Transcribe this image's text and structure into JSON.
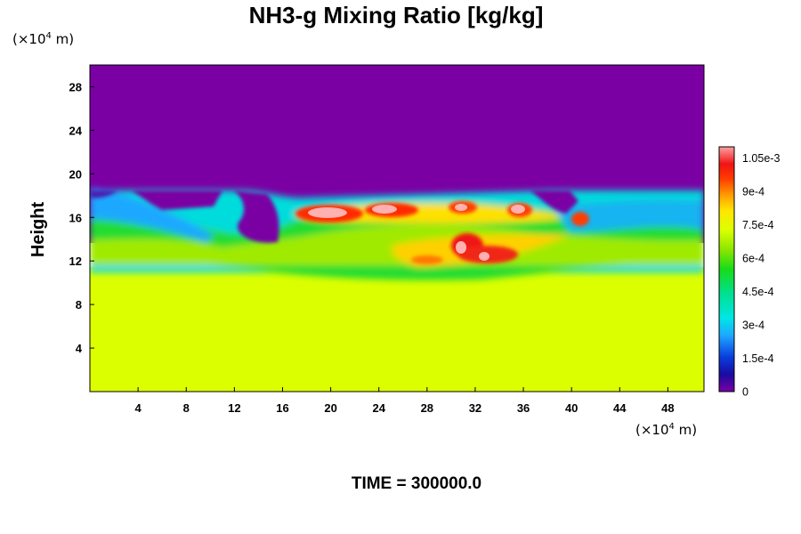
{
  "chart_data": {
    "type": "heatmap",
    "title": "NH3-g Mixing Ratio [kg/kg]",
    "ylabel": "Height",
    "x_unit": {
      "prefix": "(×10",
      "exp": "4",
      "suffix": " m)"
    },
    "y_unit": {
      "prefix": "(×10",
      "exp": "4",
      "suffix": " m)"
    },
    "xlim": [
      0,
      51
    ],
    "ylim": [
      0,
      30
    ],
    "x_ticks": [
      {
        "value": 4,
        "label": "4"
      },
      {
        "value": 8,
        "label": "8"
      },
      {
        "value": 12,
        "label": "12"
      },
      {
        "value": 16,
        "label": "16"
      },
      {
        "value": 20,
        "label": "20"
      },
      {
        "value": 24,
        "label": "24"
      },
      {
        "value": 28,
        "label": "28"
      },
      {
        "value": 32,
        "label": "32"
      },
      {
        "value": 36,
        "label": "36"
      },
      {
        "value": 40,
        "label": "40"
      },
      {
        "value": 44,
        "label": "44"
      },
      {
        "value": 48,
        "label": "48"
      }
    ],
    "y_ticks": [
      {
        "value": 4,
        "label": "4"
      },
      {
        "value": 8,
        "label": "8"
      },
      {
        "value": 12,
        "label": "12"
      },
      {
        "value": 16,
        "label": "16"
      },
      {
        "value": 20,
        "label": "20"
      },
      {
        "value": 24,
        "label": "24"
      },
      {
        "value": 28,
        "label": "28"
      }
    ],
    "colorbar": {
      "range": [
        0,
        0.0011
      ],
      "ticks": [
        {
          "value": 0,
          "label": "0"
        },
        {
          "value": 0.00015,
          "label": "1.5e-4"
        },
        {
          "value": 0.0003,
          "label": "3e-4"
        },
        {
          "value": 0.00045,
          "label": "4.5e-4"
        },
        {
          "value": 0.0006,
          "label": "6e-4"
        },
        {
          "value": 0.00075,
          "label": "7.5e-4"
        },
        {
          "value": 0.0009,
          "label": "9e-4"
        },
        {
          "value": 0.00105,
          "label": "1.05e-3"
        }
      ]
    },
    "field_summary": {
      "lower_layer": {
        "z_range": [
          0,
          11.5
        ],
        "value": 0.00078
      },
      "upper_layer": {
        "z_range": [
          18,
          30
        ],
        "value": 0.0
      }
    },
    "time_label": "TIME = 300000.0"
  }
}
